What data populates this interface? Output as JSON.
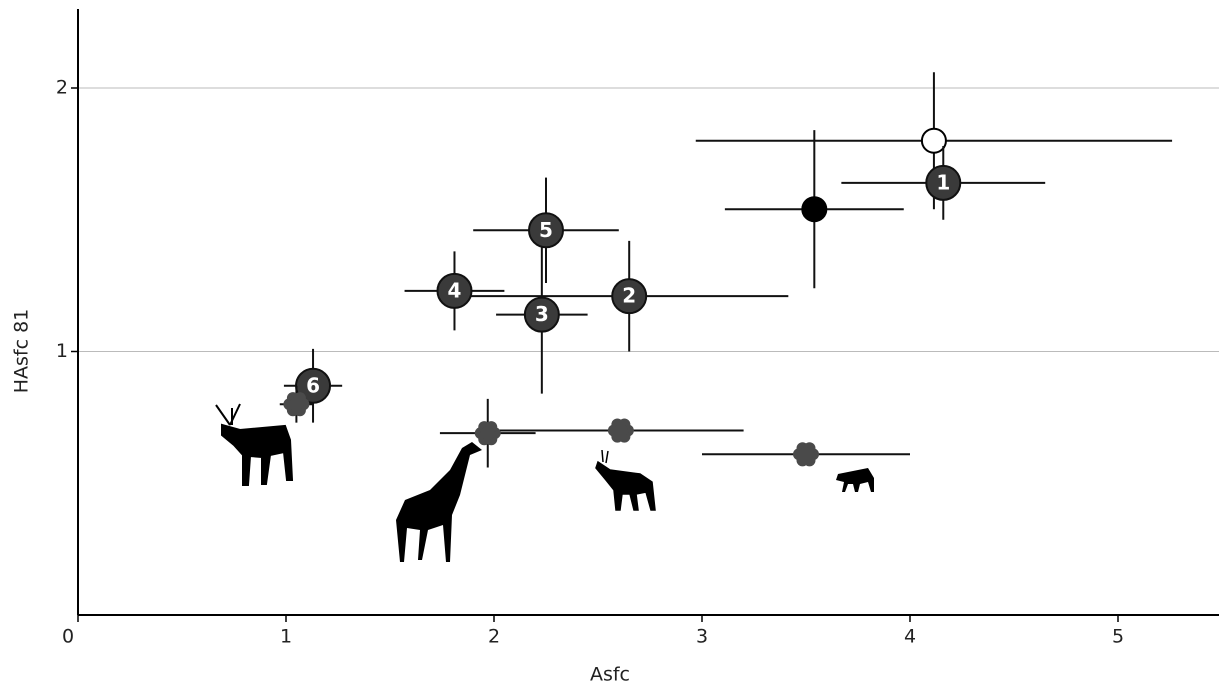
{
  "chart_data": {
    "type": "scatter",
    "xlabel": "Asfc",
    "ylabel": "HAsfc 81",
    "xlim": [
      0,
      5.5
    ],
    "ylim": [
      0,
      2.3
    ],
    "xticks": [
      0,
      1,
      2,
      3,
      4,
      5
    ],
    "yticks": [
      1,
      2
    ],
    "grid": true,
    "series": [
      {
        "marker": "circle",
        "color": "#ffffff",
        "x": [
          4.115
        ],
        "y": [
          1.8
        ],
        "xerr": [
          1.145
        ],
        "yerr": [
          0.26
        ]
      },
      {
        "marker": "circle",
        "color": "#000000",
        "x": [
          3.54
        ],
        "y": [
          1.54
        ],
        "xerr": [
          0.43
        ],
        "yerr": [
          0.3
        ]
      },
      {
        "marker": "numbered",
        "color": "#3a3a3a",
        "labels": [
          "1",
          "2",
          "3",
          "4",
          "5",
          "6"
        ],
        "x": [
          4.16,
          2.65,
          2.23,
          1.81,
          2.25,
          1.13
        ],
        "y": [
          1.64,
          1.21,
          1.14,
          1.23,
          1.46,
          0.87
        ],
        "xerr": [
          0.49,
          0.765,
          0.22,
          0.24,
          0.35,
          0.14
        ],
        "yerr": [
          0.14,
          0.21,
          0.3,
          0.15,
          0.2,
          0.14
        ]
      },
      {
        "marker": "flower",
        "color": "#4a4a4a",
        "x": [
          1.05,
          1.97,
          2.61,
          3.5
        ],
        "y": [
          0.8,
          0.69,
          0.7,
          0.61
        ],
        "xerr": [
          0.08,
          0.23,
          0.59,
          0.5
        ],
        "yerr": [
          0.07,
          0.13,
          0,
          0
        ]
      }
    ]
  }
}
